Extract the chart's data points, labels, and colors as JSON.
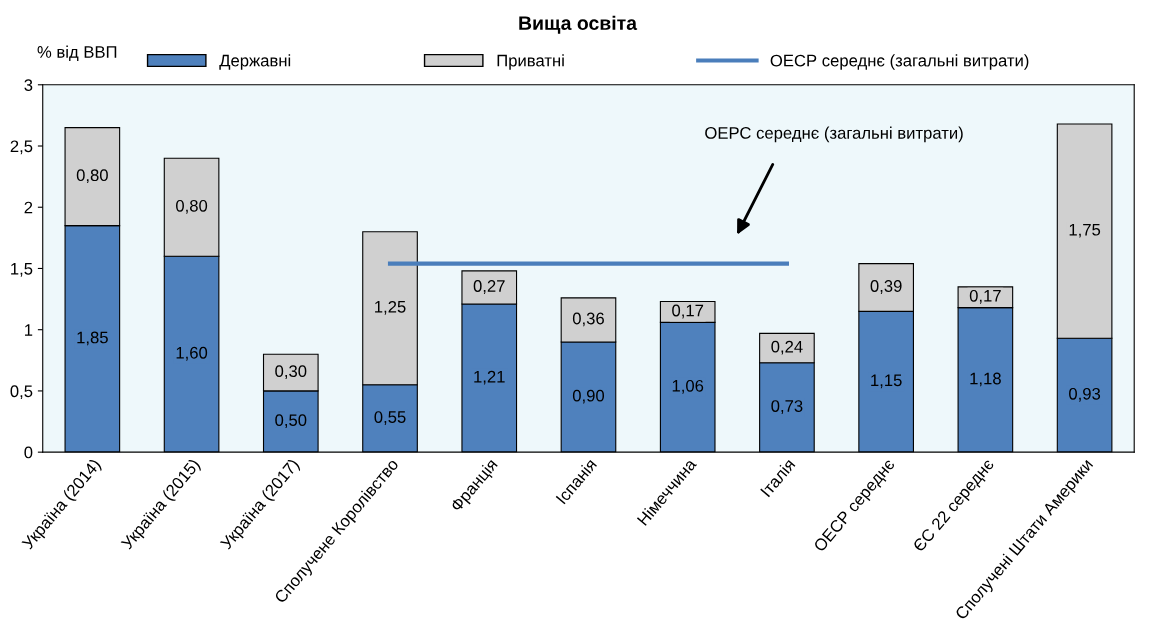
{
  "chart_data": {
    "type": "bar",
    "title": "Вища освіта",
    "ylabel": "% від ВВП",
    "categories": [
      "Україна (2014)",
      "Україна (2015)",
      "Україна (2017)",
      "Сполучене Королівство",
      "Франція",
      "Іспанія",
      "Німеччина",
      "Італія",
      "ОЕСР середнє",
      "ЄС 22 середнє",
      "Сполучені Штати Америки"
    ],
    "stacked": true,
    "series": [
      {
        "name": "Державні",
        "color": "#4f81bd",
        "values": [
          1.85,
          1.6,
          0.5,
          0.55,
          1.21,
          0.9,
          1.06,
          0.73,
          1.15,
          1.18,
          0.93
        ],
        "value_labels": [
          "1,85",
          "1,60",
          "0,50",
          "0,55",
          "1,21",
          "0,90",
          "1,06",
          "0,73",
          "1,15",
          "1,18",
          "0,93"
        ]
      },
      {
        "name": "Приватні",
        "color": "#d0d0d0",
        "values": [
          0.8,
          0.8,
          0.3,
          1.25,
          0.27,
          0.36,
          0.17,
          0.24,
          0.39,
          0.17,
          1.75
        ],
        "value_labels": [
          "0,80",
          "0,80",
          "0,30",
          "1,25",
          "0,27",
          "0,36",
          "0,17",
          "0,24",
          "0,39",
          "0,17",
          "1,75"
        ]
      },
      {
        "name": "ОЕСР середнє (загальні витрати)",
        "type": "line",
        "color": "#4a7ebb",
        "values": [
          null,
          null,
          null,
          1.54,
          1.54,
          1.54,
          1.54,
          1.54,
          null,
          null,
          null
        ]
      }
    ],
    "ylim": [
      0,
      3
    ],
    "yticks": [
      0,
      {
        "value": 0.5,
        "label": "0,5"
      },
      1,
      {
        "value": 1.5,
        "label": "1,5"
      },
      2,
      {
        "value": 2.5,
        "label": "2,5"
      },
      3
    ],
    "annotations": [
      "ОЕРС середнє (загальні витрати)"
    ],
    "grid": false,
    "legend": "top"
  }
}
